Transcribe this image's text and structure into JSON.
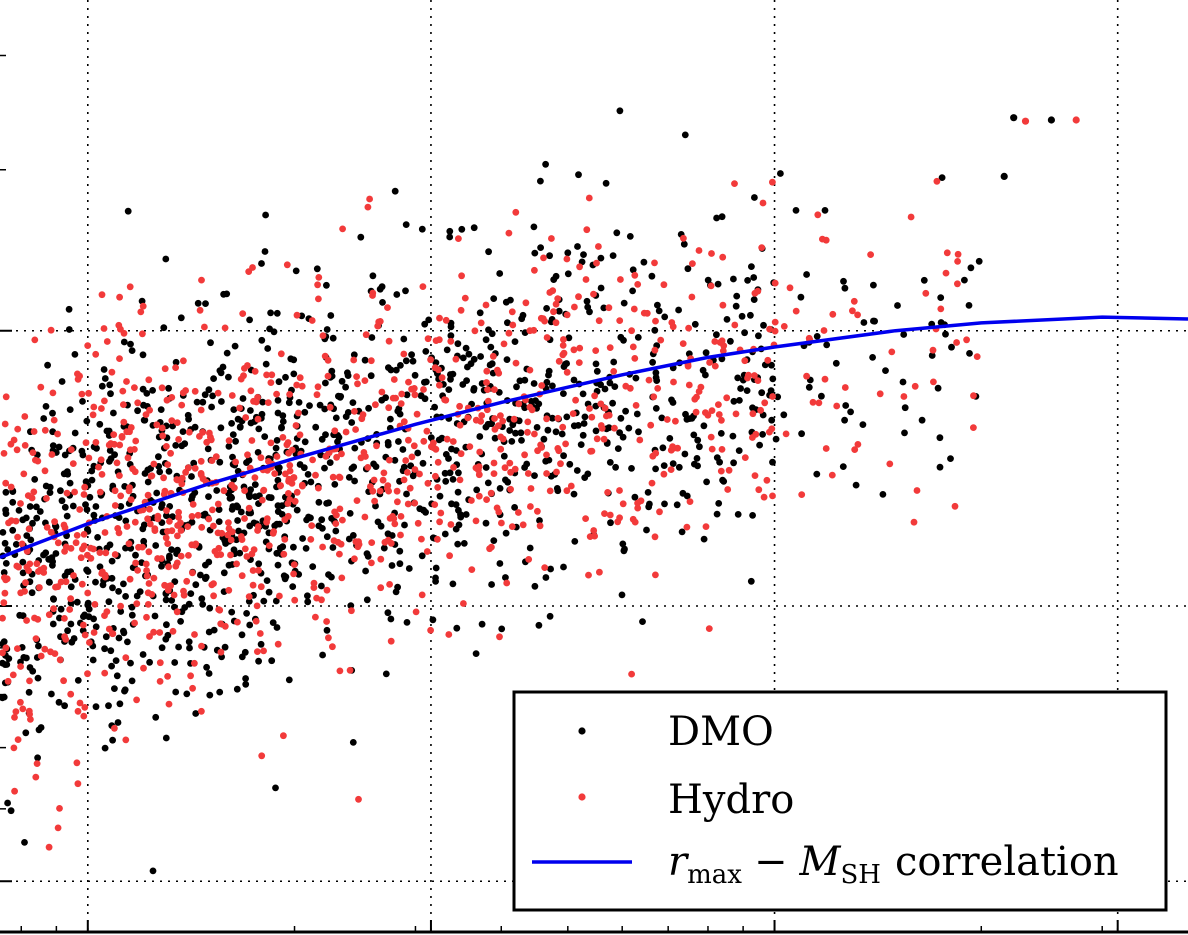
{
  "chart_data": {
    "type": "scatter",
    "title": "",
    "xlabel": "",
    "ylabel": "",
    "x_scale": "log",
    "y_scale": "log",
    "xlim": [
      0.745,
      40
    ],
    "ylim": [
      0.44,
      4.6
    ],
    "x_major_ticks": [
      1,
      3.16,
      10,
      31.6
    ],
    "y_major_ticks": [
      0.5,
      1,
      2
    ],
    "grid": true,
    "legend_position": "bottom-right",
    "colors": {
      "dmo": "#000000",
      "hydro": "#f23a3a",
      "correlation": "#0000ee"
    },
    "series": [
      {
        "name": "DMO",
        "kind": "points",
        "color": "#000000",
        "n_points": 1300
      },
      {
        "name": "Hydro",
        "kind": "points",
        "color": "#f23a3a",
        "n_points": 1050
      },
      {
        "name": "correlation",
        "kind": "line",
        "color": "#0000ee",
        "x": [
          0.745,
          1.0,
          1.5,
          2.0,
          3.0,
          4.0,
          6.0,
          8.0,
          10,
          15,
          20,
          30,
          40
        ],
        "y": [
          1.13,
          1.23,
          1.36,
          1.45,
          1.58,
          1.67,
          1.79,
          1.87,
          1.92,
          2.0,
          2.04,
          2.07,
          2.06
        ]
      }
    ],
    "outliers": [
      {
        "series": "DMO",
        "x": 22.3,
        "y": 3.42
      },
      {
        "series": "DMO",
        "x": 21.6,
        "y": 2.95
      },
      {
        "series": "DMO",
        "x": 25.3,
        "y": 3.4
      },
      {
        "series": "Hydro",
        "x": 23.2,
        "y": 3.39
      },
      {
        "series": "Hydro",
        "x": 27.5,
        "y": 3.4
      }
    ],
    "legend": {
      "entries": [
        {
          "series": "DMO",
          "label": "DMO"
        },
        {
          "series": "Hydro",
          "label": "Hydro"
        },
        {
          "series": "correlation",
          "label_var": "r",
          "label_var_sub": "max",
          "label_op": "−",
          "label_var2": "M",
          "label_var2_sub": "SH",
          "label_suffix": "correlation"
        }
      ]
    }
  }
}
